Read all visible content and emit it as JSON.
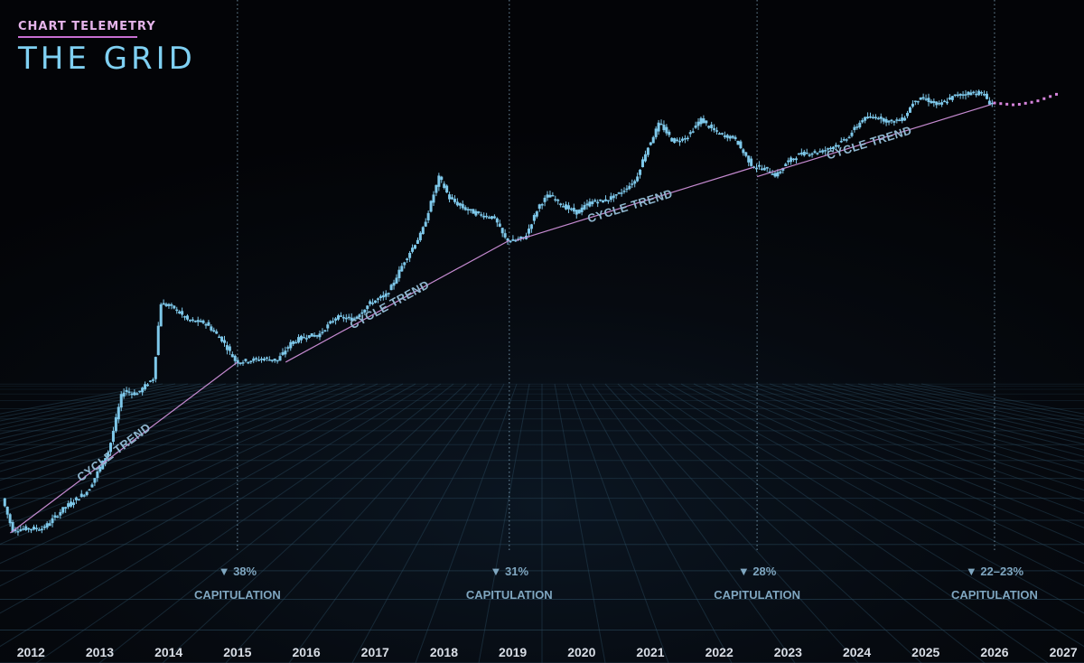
{
  "brand": {
    "subtitle": "CHART TELEMETRY",
    "title": "THE GRID"
  },
  "colors": {
    "candle": "#7ec8ea",
    "projection": "#d684db",
    "trend": "#c58ad0",
    "marker": "#8fb7cf",
    "grid": "#2a4a5e"
  },
  "chart_data": {
    "type": "candlestick",
    "title": "THE GRID",
    "subtitle": "CHART TELEMETRY",
    "scale": "log",
    "xlim": [
      2011.55,
      2027.3
    ],
    "ylim": [
      4.5,
      420000
    ],
    "x_ticks": [
      "2012",
      "2013",
      "2014",
      "2015",
      "2016",
      "2017",
      "2018",
      "2019",
      "2020",
      "2021",
      "2022",
      "2023",
      "2024",
      "2025",
      "2026",
      "2027"
    ],
    "series_anchors": [
      [
        2011.6,
        10
      ],
      [
        2011.75,
        4.8
      ],
      [
        2011.95,
        5
      ],
      [
        2012.2,
        5
      ],
      [
        2012.5,
        8
      ],
      [
        2012.85,
        12
      ],
      [
        2013.15,
        30
      ],
      [
        2013.35,
        120
      ],
      [
        2013.55,
        110
      ],
      [
        2013.8,
        160
      ],
      [
        2013.9,
        900
      ],
      [
        2014.1,
        800
      ],
      [
        2014.3,
        600
      ],
      [
        2014.55,
        570
      ],
      [
        2014.8,
        380
      ],
      [
        2015.0,
        230
      ],
      [
        2015.2,
        240
      ],
      [
        2015.4,
        250
      ],
      [
        2015.6,
        240
      ],
      [
        2015.8,
        360
      ],
      [
        2016.0,
        420
      ],
      [
        2016.2,
        430
      ],
      [
        2016.45,
        650
      ],
      [
        2016.7,
        620
      ],
      [
        2016.95,
        900
      ],
      [
        2017.2,
        1100
      ],
      [
        2017.45,
        2400
      ],
      [
        2017.7,
        4600
      ],
      [
        2017.85,
        10000
      ],
      [
        2017.95,
        16500
      ],
      [
        2018.1,
        10000
      ],
      [
        2018.3,
        8000
      ],
      [
        2018.5,
        7000
      ],
      [
        2018.75,
        6400
      ],
      [
        2018.9,
        4000
      ],
      [
        2019.0,
        3700
      ],
      [
        2019.2,
        4100
      ],
      [
        2019.4,
        8500
      ],
      [
        2019.55,
        11000
      ],
      [
        2019.75,
        8400
      ],
      [
        2019.95,
        7200
      ],
      [
        2020.15,
        9200
      ],
      [
        2020.35,
        9500
      ],
      [
        2020.55,
        11000
      ],
      [
        2020.8,
        15000
      ],
      [
        2020.95,
        29000
      ],
      [
        2021.15,
        57000
      ],
      [
        2021.35,
        37000
      ],
      [
        2021.55,
        41000
      ],
      [
        2021.75,
        62000
      ],
      [
        2021.9,
        50000
      ],
      [
        2022.05,
        43000
      ],
      [
        2022.25,
        40000
      ],
      [
        2022.35,
        30000
      ],
      [
        2022.5,
        21000
      ],
      [
        2022.7,
        19500
      ],
      [
        2022.85,
        16800
      ],
      [
        2023.0,
        23000
      ],
      [
        2023.2,
        28000
      ],
      [
        2023.5,
        29500
      ],
      [
        2023.75,
        35000
      ],
      [
        2023.9,
        42000
      ],
      [
        2024.1,
        62000
      ],
      [
        2024.3,
        66000
      ],
      [
        2024.5,
        58000
      ],
      [
        2024.7,
        63000
      ],
      [
        2024.85,
        96000
      ],
      [
        2025.0,
        100000
      ],
      [
        2025.2,
        85000
      ],
      [
        2025.45,
        107000
      ],
      [
        2025.7,
        115000
      ],
      [
        2025.85,
        112000
      ],
      [
        2025.95,
        90000
      ]
    ],
    "projection": [
      [
        2026.0,
        90000
      ],
      [
        2026.3,
        86000
      ],
      [
        2026.6,
        93000
      ],
      [
        2026.9,
        110000
      ]
    ],
    "trend_segments": [
      {
        "from": [
          2011.7,
          4.5
        ],
        "to": [
          2015.0,
          230
        ],
        "label": "CYCLE TREND"
      },
      {
        "from": [
          2015.7,
          230
        ],
        "to": [
          2018.95,
          3800
        ],
        "label": "CYCLE TREND"
      },
      {
        "from": [
          2019.05,
          3800
        ],
        "to": [
          2022.5,
          20500
        ],
        "label": "CYCLE TREND"
      },
      {
        "from": [
          2022.55,
          16500
        ],
        "to": [
          2025.95,
          87000
        ],
        "label": "CYCLE TREND"
      }
    ],
    "capitulations": [
      {
        "x": 2015.0,
        "pct": "▼ 38%",
        "label": "CAPITULATION"
      },
      {
        "x": 2018.95,
        "pct": "▼ 31%",
        "label": "CAPITULATION"
      },
      {
        "x": 2022.55,
        "pct": "▼ 28%",
        "label": "CAPITULATION"
      },
      {
        "x": 2026.0,
        "pct": "▼ 22–23%",
        "label": "CAPITULATION"
      }
    ]
  }
}
